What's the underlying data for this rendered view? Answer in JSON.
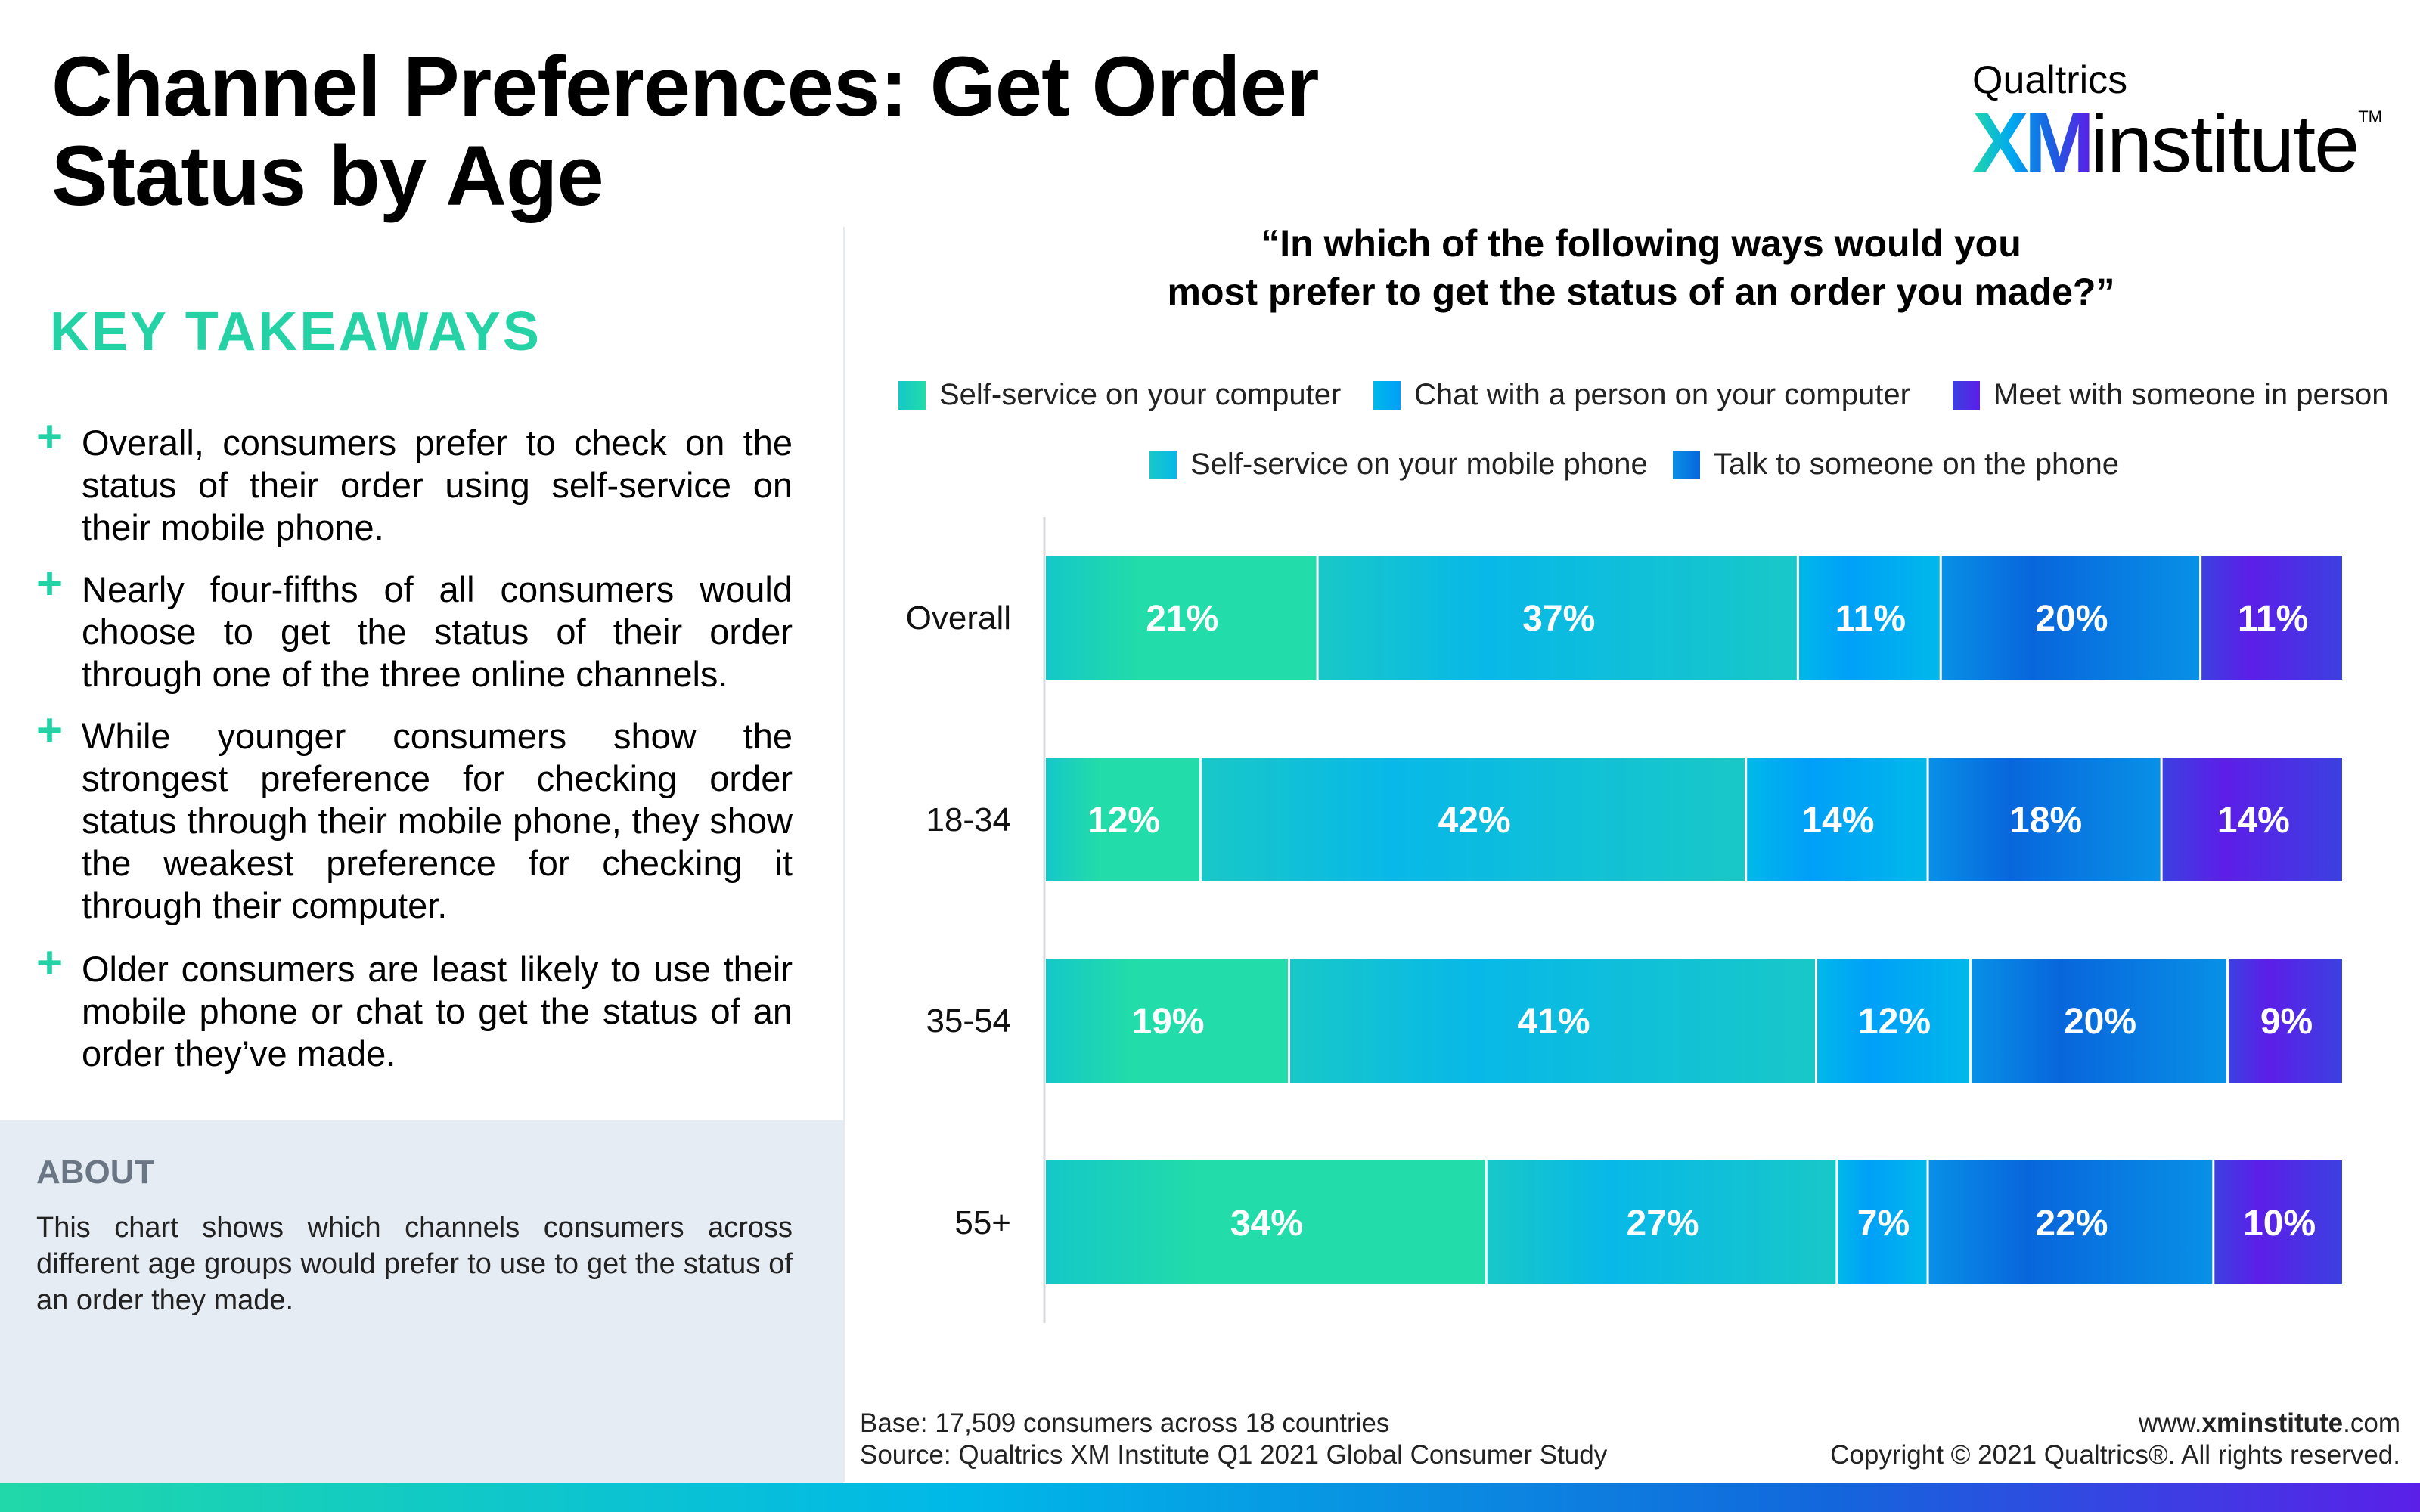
{
  "title": "Channel Preferences: Get Order Status by Age",
  "logo": {
    "top": "Qualtrics",
    "xm": "XM",
    "institute": "institute",
    "tm": "TM"
  },
  "key_takeaways": {
    "heading": "KEY TAKEAWAYS",
    "icon": "plus-icon",
    "items": [
      "Overall, consumers prefer to check on the status of their order using self-service on their mobile phone.",
      "Nearly four-fifths of all consumers would choose to get the status of their order through one of the three online channels.",
      "While younger consumers show the strongest preference for checking order status through their mobile phone, they show the weakest preference for checking it through their computer.",
      "Older consumers are least likely to use their mobile phone or chat to get the status of an order they’ve made."
    ]
  },
  "about": {
    "heading": "ABOUT",
    "text": "This chart shows which channels consumers across different age groups would prefer to use to get the status of an order they made."
  },
  "footer": {
    "base": "Base: 17,509 consumers across 18 countries",
    "source": "Source: Qualtrics XM Institute Q1 2021 Global Consumer Study",
    "url_prefix": "www.",
    "url_bold": "xminstitute",
    "url_suffix": ".com",
    "copyright": "Copyright © 2021 Qualtrics®. All rights reserved."
  },
  "chart_data": {
    "type": "bar",
    "orientation": "horizontal",
    "stacked": true,
    "title": "“In which of the following ways would you most prefer to get the status of an order you made?”",
    "title_lines": [
      "“In which of the following ways would you",
      "most prefer to get the status of an order you made?”"
    ],
    "categories": [
      "Overall",
      "18-34",
      "35-54",
      "55+"
    ],
    "legend_placement": "top",
    "legend_order": [
      "Self-service on your computer",
      "Chat with a person on your computer",
      "Meet with someone in person",
      "Self-service on your mobile phone",
      "Talk to someone on the phone"
    ],
    "series": [
      {
        "name": "Self-service on your computer",
        "color": "#22dca9",
        "color2": "#14c8c8",
        "values": [
          21,
          12,
          19,
          34
        ]
      },
      {
        "name": "Self-service on your mobile phone",
        "color": "#08b8e8",
        "color2": "#18c8c8",
        "values": [
          37,
          42,
          41,
          27
        ]
      },
      {
        "name": "Chat with a person on your computer",
        "color": "#00a0f8",
        "color2": "#00b8ea",
        "values": [
          11,
          14,
          12,
          7
        ]
      },
      {
        "name": "Talk to someone on the phone",
        "color": "#0866dc",
        "color2": "#0890e6",
        "values": [
          20,
          18,
          20,
          22
        ]
      },
      {
        "name": "Meet with someone in person",
        "color": "#5c1ee8",
        "color2": "#3c40e0",
        "values": [
          11,
          14,
          9,
          10
        ]
      }
    ],
    "value_format": "{v}%",
    "grid": false
  }
}
